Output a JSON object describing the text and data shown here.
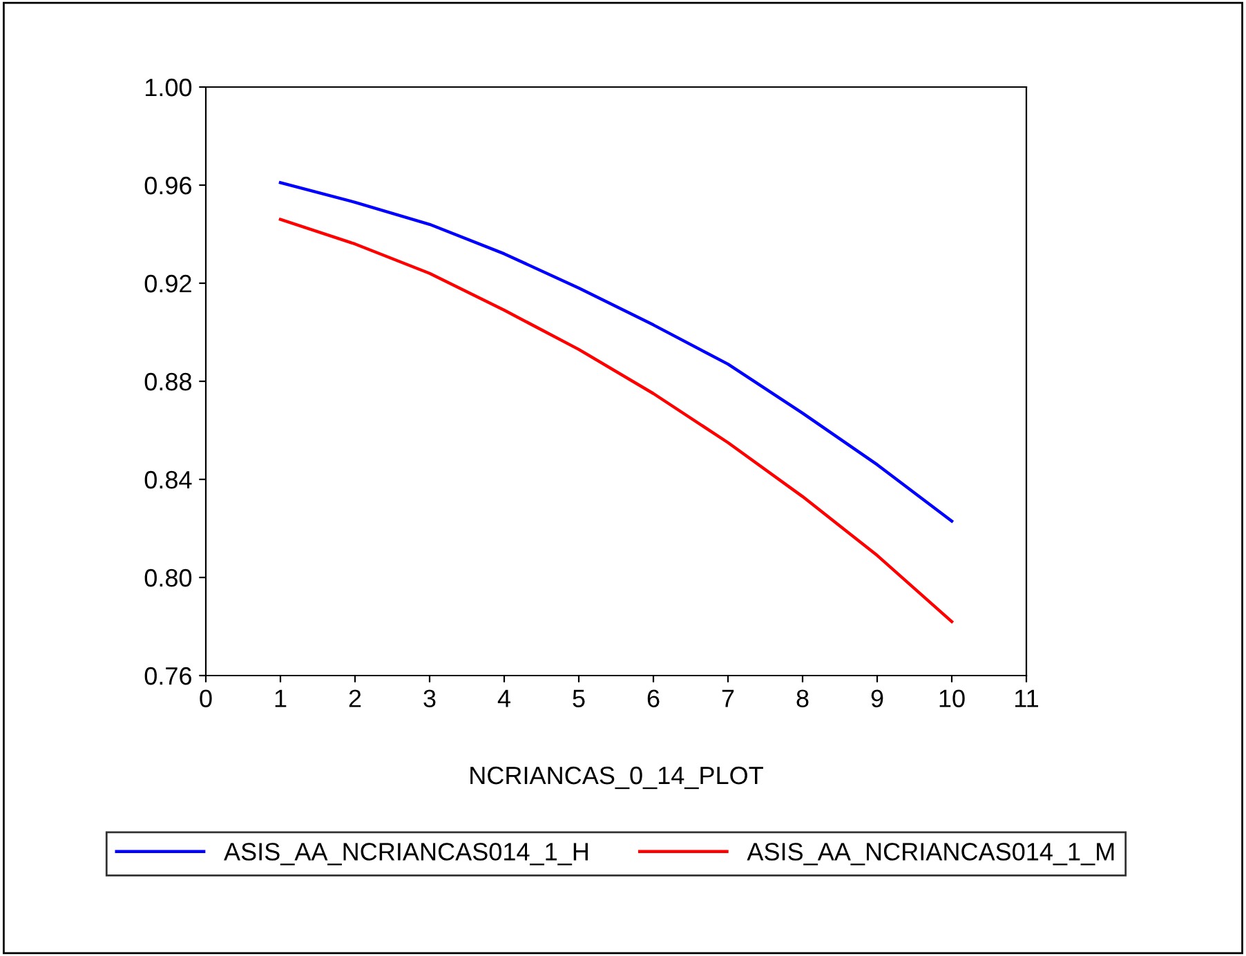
{
  "chart_data": {
    "type": "line",
    "xlabel": "NCRIANCAS_0_14_PLOT",
    "x": [
      1,
      2,
      3,
      4,
      5,
      6,
      7,
      8,
      9,
      10
    ],
    "series": [
      {
        "name": "ASIS_AA_NCRIANCAS014_1_H",
        "color": "#0000ff",
        "values": [
          0.961,
          0.953,
          0.944,
          0.932,
          0.918,
          0.903,
          0.887,
          0.867,
          0.846,
          0.823
        ]
      },
      {
        "name": "ASIS_AA_NCRIANCAS014_1_M",
        "color": "#ff0000",
        "values": [
          0.946,
          0.936,
          0.924,
          0.909,
          0.893,
          0.875,
          0.855,
          0.833,
          0.809,
          0.782
        ]
      }
    ],
    "xlim": [
      0,
      11
    ],
    "xticks": [
      0,
      1,
      2,
      3,
      4,
      5,
      6,
      7,
      8,
      9,
      10,
      11
    ],
    "ylim": [
      0.76,
      1.0
    ],
    "yticks": [
      {
        "value": 0.76,
        "label": "0.76"
      },
      {
        "value": 0.8,
        "label": "0.80"
      },
      {
        "value": 0.84,
        "label": "0.84"
      },
      {
        "value": 0.88,
        "label": "0.88"
      },
      {
        "value": 0.92,
        "label": "0.92"
      },
      {
        "value": 0.96,
        "label": "0.96"
      },
      {
        "value": 1.0,
        "label": "1.00"
      }
    ],
    "grid": false,
    "legend": "bottom",
    "marker": "none",
    "line_style": "solid"
  }
}
